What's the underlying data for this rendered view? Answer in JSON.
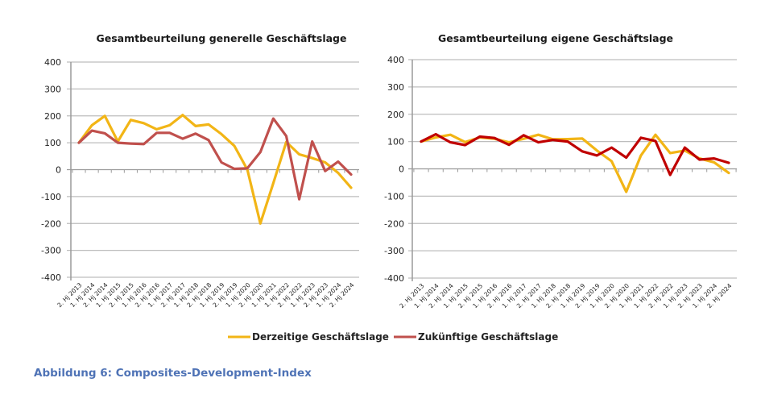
{
  "caption": "Abbildung 6: Composites-Development-Index",
  "legend": [
    {
      "name": "Derzeitige Geschäftslage",
      "color": "#f2b516"
    },
    {
      "name": "Zukünftige Geschäftslage",
      "color": "#c0504d"
    }
  ],
  "chart_data": [
    {
      "type": "line",
      "title": "Gesamtbeurteilung generelle Geschäftslage",
      "xlabel": "",
      "ylabel": "",
      "ylim": [
        -400,
        400
      ],
      "yticks": [
        400,
        300,
        200,
        100,
        0,
        -100,
        -200,
        -300,
        -400
      ],
      "grid": true,
      "legend_position": "bottom",
      "categories": [
        "2. Hj 2013",
        "1. Hj 2014",
        "2. Hj 2014",
        "1. Hj 2015",
        "2. Hj 2015",
        "1. Hj 2016",
        "2. Hj 2016",
        "1. Hj 2017",
        "2. Hj 2017",
        "1. Hj 2018",
        "2. Hj 2018",
        "1. Hj 2019",
        "2. Hj 2019",
        "1. Hj 2020",
        "2. Hj 2020",
        "1. Hj 2021",
        "1. Hj 2022",
        "2. Hj 2022",
        "1. Hj 2023",
        "2. Hj 2023",
        "1. Hj 2024",
        "2. Hj 2024"
      ],
      "series": [
        {
          "name": "Derzeitige Geschäftslage",
          "color": "#f2b516",
          "values": [
            100,
            165,
            200,
            105,
            185,
            173,
            150,
            165,
            203,
            162,
            168,
            132,
            88,
            0,
            -200,
            -50,
            103,
            57,
            43,
            27,
            -12,
            -67
          ]
        },
        {
          "name": "Zukünftige Geschäftslage",
          "color": "#c0504d",
          "values": [
            100,
            145,
            135,
            100,
            97,
            95,
            137,
            137,
            115,
            134,
            110,
            27,
            3,
            5,
            65,
            190,
            125,
            -110,
            105,
            -5,
            30,
            -18
          ]
        }
      ]
    },
    {
      "type": "line",
      "title": "Gesamtbeurteilung eigene Geschäftslage",
      "xlabel": "",
      "ylabel": "",
      "ylim": [
        -400,
        400
      ],
      "yticks": [
        400,
        300,
        200,
        100,
        0,
        -100,
        -200,
        -300,
        -400
      ],
      "grid": true,
      "legend_position": "bottom",
      "categories": [
        "2. Hj 2013",
        "1. Hj 2014",
        "2. Hj 2014",
        "1. Hj 2015",
        "2. Hj 2015",
        "1. Hj 2016",
        "2. Hj 2016",
        "1. Hj 2017",
        "2. Hj 2017",
        "1. Hj 2018",
        "2. Hj 2018",
        "1. Hj 2019",
        "2. Hj 2019",
        "1. Hj 2020",
        "2. Hj 2020",
        "1. Hj 2021",
        "1. Hj 2022",
        "2. Hj 2022",
        "1. Hj 2023",
        "2. Hj 2023",
        "1. Hj 2024",
        "2. Hj 2024"
      ],
      "series": [
        {
          "name": "Derzeitige Geschäftslage",
          "color": "#f2b516",
          "values": [
            100,
            115,
            125,
            98,
            115,
            110,
            97,
            110,
            125,
            108,
            109,
            111,
            67,
            28,
            -84,
            49,
            125,
            58,
            67,
            38,
            24,
            -15
          ]
        },
        {
          "name": "Zukünftige Geschäftslage",
          "color": "#c00000",
          "values": [
            100,
            127,
            97,
            87,
            118,
            113,
            88,
            123,
            97,
            106,
            100,
            64,
            49,
            78,
            41,
            114,
            102,
            -22,
            78,
            34,
            38,
            22
          ]
        }
      ]
    }
  ]
}
